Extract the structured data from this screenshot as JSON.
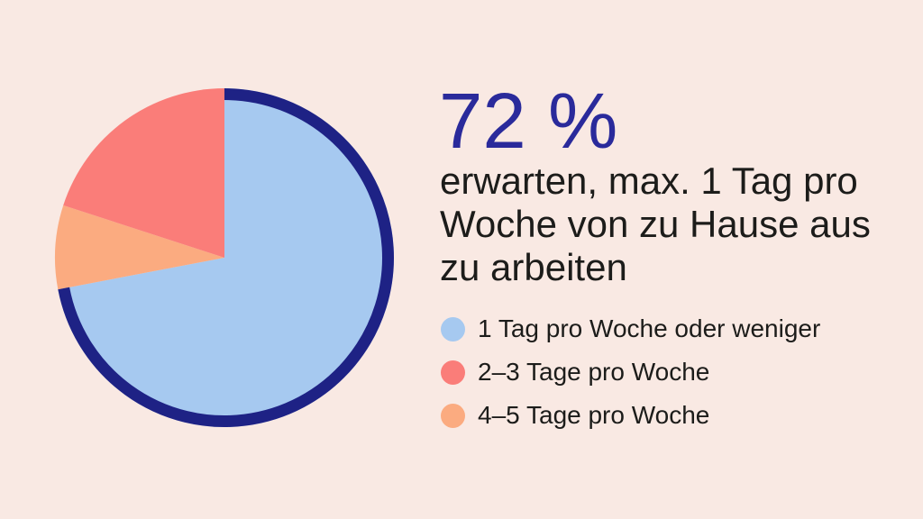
{
  "page": {
    "background_color": "#f9e9e3"
  },
  "headline": {
    "text": "72 %",
    "color": "#2a2a9b"
  },
  "subtitle": {
    "text": "erwarten, max. 1 Tag pro Woche von zu Hause aus zu arbeiten",
    "lines": [
      "erwarten, max. 1 Tag pro",
      "Woche von zu Hause aus",
      "zu arbeiten"
    ]
  },
  "chart_data": {
    "type": "pie",
    "unit": "%",
    "total": 100,
    "series": [
      {
        "name": "1 Tag pro Woche oder weniger",
        "value": 72,
        "color": "#a6c9f0"
      },
      {
        "name": "2–3 Tage pro Woche",
        "value": 20,
        "color": "#fa7d79"
      },
      {
        "name": "4–5 Tage pro Woche",
        "value": 8,
        "color": "#fbab80"
      }
    ],
    "draw_order": [
      0,
      2,
      1
    ],
    "start_angle_deg": 0,
    "direction": "clockwise",
    "highlight": {
      "series_index": 0,
      "ring_color": "#1e2285",
      "ring_width": 13
    },
    "legend_position": "right-below-subtitle"
  }
}
